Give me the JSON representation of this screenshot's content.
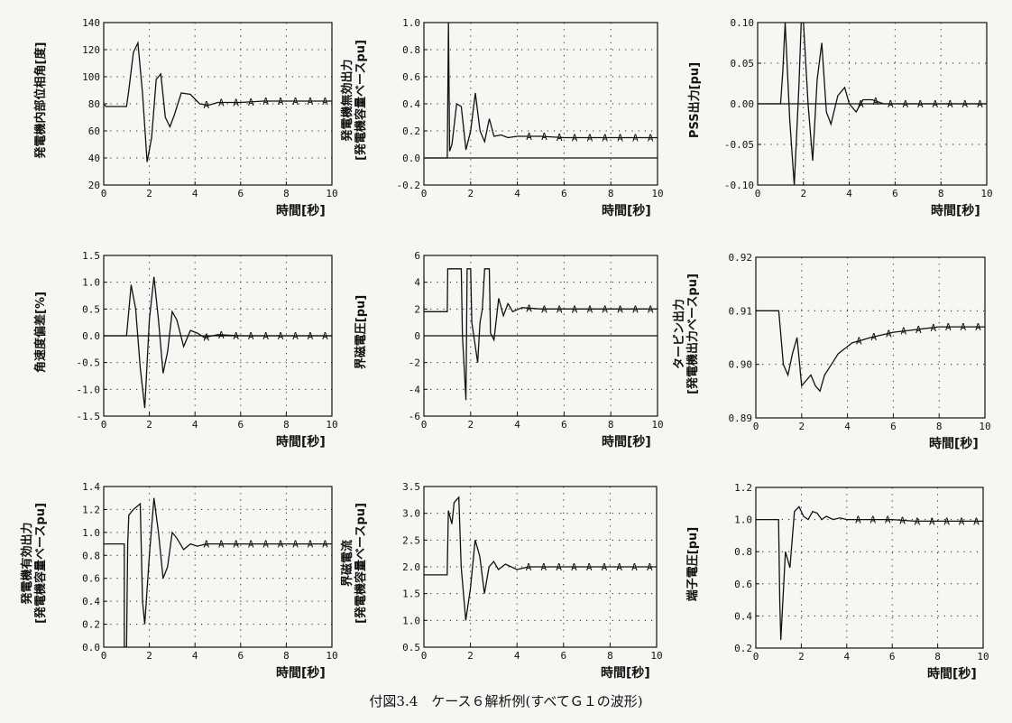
{
  "caption": "付図3.4　ケース６解析例(すべてＧ１の波形)",
  "chart_data": [
    {
      "type": "line",
      "ylabel": "発電機内部位相角[度]",
      "xlabel": "時間[秒]",
      "xlim": [
        0,
        10
      ],
      "ylim": [
        20,
        140
      ],
      "xticks": [
        0,
        2,
        4,
        6,
        8,
        10
      ],
      "yticks": [
        20,
        40,
        60,
        80,
        100,
        120,
        140
      ],
      "grid": true,
      "x": [
        0,
        0.1,
        1.0,
        1.1,
        1.3,
        1.5,
        1.7,
        1.9,
        2.1,
        2.3,
        2.5,
        2.7,
        2.9,
        3.1,
        3.4,
        3.8,
        4.2,
        4.6,
        5,
        6,
        7,
        8,
        9,
        10
      ],
      "y": [
        80,
        78,
        78,
        90,
        118,
        125,
        88,
        37,
        55,
        98,
        102,
        70,
        63,
        72,
        88,
        87,
        80,
        79,
        81,
        81,
        82,
        82,
        82,
        82
      ]
    },
    {
      "type": "line",
      "ylabel": "発電機無効出力\n[発電機容量ベースpu]",
      "xlabel": "時間[秒]",
      "xlim": [
        0,
        10
      ],
      "ylim": [
        -0.2,
        1.0
      ],
      "xticks": [
        0,
        2,
        4,
        6,
        8,
        10
      ],
      "yticks": [
        -0.2,
        0,
        0.2,
        0.4,
        0.6,
        0.8,
        1.0
      ],
      "grid": true,
      "x": [
        0,
        1.0,
        1.05,
        1.1,
        1.2,
        1.4,
        1.6,
        1.8,
        2.0,
        2.2,
        2.4,
        2.6,
        2.8,
        3.0,
        3.3,
        3.6,
        4,
        5,
        6,
        7,
        8,
        9,
        10
      ],
      "y": [
        0.0,
        0.0,
        1.0,
        0.05,
        0.1,
        0.4,
        0.38,
        0.06,
        0.2,
        0.48,
        0.2,
        0.12,
        0.29,
        0.16,
        0.17,
        0.15,
        0.16,
        0.16,
        0.15,
        0.15,
        0.15,
        0.15,
        0.15
      ]
    },
    {
      "type": "line",
      "ylabel": "PSS出力[pu]",
      "xlabel": "時間[秒]",
      "xlim": [
        0,
        10
      ],
      "ylim": [
        -0.1,
        0.1
      ],
      "xticks": [
        0,
        2,
        4,
        6,
        8,
        10
      ],
      "yticks": [
        -0.1,
        -0.05,
        0,
        0.05,
        0.1
      ],
      "grid": true,
      "x": [
        0,
        1.0,
        1.1,
        1.2,
        1.4,
        1.6,
        1.8,
        1.9,
        2.0,
        2.2,
        2.4,
        2.6,
        2.8,
        3.0,
        3.2,
        3.5,
        3.8,
        4.0,
        4.3,
        4.6,
        5,
        5.5,
        6,
        7,
        8,
        9,
        10
      ],
      "y": [
        0.0,
        0.0,
        0.04,
        0.1,
        -0.02,
        -0.1,
        0.02,
        0.1,
        0.1,
        0.0,
        -0.07,
        0.03,
        0.075,
        -0.01,
        -0.025,
        0.01,
        0.02,
        0.0,
        -0.01,
        0.005,
        0.005,
        0,
        0,
        0,
        0,
        0,
        0
      ]
    },
    {
      "type": "line",
      "ylabel": "角速度偏差[%]",
      "xlabel": "時間[秒]",
      "xlim": [
        0,
        10
      ],
      "ylim": [
        -1.5,
        1.5
      ],
      "xticks": [
        0,
        2,
        4,
        6,
        8,
        10
      ],
      "yticks": [
        -1.5,
        -1.0,
        -0.5,
        0,
        0.5,
        1.0,
        1.5
      ],
      "grid": true,
      "x": [
        0,
        1.0,
        1.2,
        1.4,
        1.6,
        1.8,
        2.0,
        2.2,
        2.4,
        2.6,
        2.8,
        3.0,
        3.2,
        3.5,
        3.8,
        4.1,
        4.4,
        5,
        6,
        7,
        8,
        9,
        10
      ],
      "y": [
        0,
        0,
        0.95,
        0.5,
        -0.6,
        -1.35,
        0.3,
        1.1,
        0.3,
        -0.7,
        -0.3,
        0.45,
        0.3,
        -0.2,
        0.1,
        0.05,
        -0.03,
        0.02,
        0,
        0,
        0,
        0,
        0
      ]
    },
    {
      "type": "line",
      "ylabel": "界磁電圧[pu]",
      "xlabel": "時間[秒]",
      "xlim": [
        0,
        10
      ],
      "ylim": [
        -6,
        6
      ],
      "xticks": [
        0,
        2,
        4,
        6,
        8,
        10
      ],
      "yticks": [
        -6,
        -4,
        -2,
        0,
        2,
        4,
        6
      ],
      "grid": true,
      "x": [
        0,
        1.0,
        1.02,
        1.6,
        1.65,
        1.8,
        1.85,
        2.0,
        2.05,
        2.3,
        2.4,
        2.5,
        2.6,
        2.8,
        2.85,
        3.0,
        3.2,
        3.4,
        3.6,
        3.8,
        4.2,
        5,
        6,
        7,
        8,
        9,
        10
      ],
      "y": [
        1.8,
        1.8,
        5,
        5,
        0,
        -4.8,
        5,
        5,
        1,
        -2,
        1,
        2,
        5,
        5,
        0.2,
        -0.3,
        2.8,
        1.5,
        2.4,
        1.8,
        2.1,
        2.0,
        2.0,
        2.0,
        2.0,
        2.0,
        2.0
      ]
    },
    {
      "type": "line",
      "ylabel": "タービン出力\n[発電機出力ベースpu]",
      "xlabel": "時間[秒]",
      "xlim": [
        0,
        10
      ],
      "ylim": [
        0.89,
        0.92
      ],
      "xticks": [
        0,
        2,
        4,
        6,
        8,
        10
      ],
      "yticks": [
        0.89,
        0.9,
        0.91,
        0.92
      ],
      "grid": true,
      "x": [
        0,
        1.0,
        1.2,
        1.4,
        1.6,
        1.8,
        2.0,
        2.2,
        2.4,
        2.6,
        2.8,
        3.0,
        3.3,
        3.6,
        3.9,
        4.2,
        4.6,
        5,
        6,
        7,
        8,
        9,
        10
      ],
      "y": [
        0.91,
        0.91,
        0.9,
        0.898,
        0.902,
        0.905,
        0.896,
        0.897,
        0.898,
        0.896,
        0.895,
        0.898,
        0.9,
        0.902,
        0.903,
        0.904,
        0.9045,
        0.905,
        0.906,
        0.9065,
        0.907,
        0.907,
        0.907
      ]
    },
    {
      "type": "line",
      "ylabel": "発電機有効出力\n[発電機容量ベースpu]",
      "xlabel": "時間[秒]",
      "xlim": [
        0,
        10
      ],
      "ylim": [
        0,
        1.4
      ],
      "xticks": [
        0,
        2,
        4,
        6,
        8,
        10
      ],
      "yticks": [
        0,
        0.2,
        0.4,
        0.6,
        0.8,
        1.0,
        1.2,
        1.4
      ],
      "grid": true,
      "x": [
        0,
        0.9,
        0.9,
        1.0,
        1.05,
        1.1,
        1.3,
        1.6,
        1.7,
        1.8,
        2.0,
        2.2,
        2.4,
        2.6,
        2.8,
        3.0,
        3.2,
        3.5,
        3.8,
        4.1,
        4.5,
        5,
        6,
        7,
        8,
        9,
        10
      ],
      "y": [
        0.9,
        0.9,
        0,
        0,
        0.9,
        1.15,
        1.2,
        1.25,
        0.4,
        0.2,
        0.8,
        1.3,
        1.0,
        0.6,
        0.7,
        1.0,
        0.95,
        0.85,
        0.9,
        0.88,
        0.9,
        0.9,
        0.9,
        0.9,
        0.9,
        0.9,
        0.9
      ]
    },
    {
      "type": "line",
      "ylabel": "界磁電流\n[発電機容量ベースpu]",
      "xlabel": "時間[秒]",
      "xlim": [
        0,
        10
      ],
      "ylim": [
        0.5,
        3.5
      ],
      "xticks": [
        0,
        2,
        4,
        6,
        8,
        10
      ],
      "yticks": [
        0.5,
        1.0,
        1.5,
        2.0,
        2.5,
        3.0,
        3.5
      ],
      "grid": true,
      "x": [
        0,
        1.0,
        1.05,
        1.2,
        1.3,
        1.5,
        1.6,
        1.8,
        2.0,
        2.2,
        2.4,
        2.6,
        2.8,
        3.0,
        3.2,
        3.5,
        4.0,
        4.5,
        5,
        6,
        7,
        8,
        9,
        10
      ],
      "y": [
        1.85,
        1.85,
        3.05,
        2.8,
        3.2,
        3.3,
        2.0,
        1.0,
        1.6,
        2.5,
        2.2,
        1.5,
        2.0,
        2.1,
        1.95,
        2.05,
        1.95,
        2.0,
        2.0,
        2.0,
        2.0,
        2.0,
        2.0,
        2.0
      ]
    },
    {
      "type": "line",
      "ylabel": "端子電圧[pu]",
      "xlabel": "時間[秒]",
      "xlim": [
        0,
        10
      ],
      "ylim": [
        0.2,
        1.2
      ],
      "xticks": [
        0,
        2,
        4,
        6,
        8,
        10
      ],
      "yticks": [
        0.2,
        0.4,
        0.6,
        0.8,
        1.0,
        1.2
      ],
      "grid": true,
      "x": [
        0,
        1.0,
        1.05,
        1.1,
        1.3,
        1.5,
        1.7,
        1.9,
        2.1,
        2.3,
        2.5,
        2.7,
        2.9,
        3.1,
        3.4,
        3.7,
        4,
        5,
        6,
        7,
        8,
        9,
        10
      ],
      "y": [
        1.0,
        1.0,
        0.5,
        0.25,
        0.8,
        0.7,
        1.05,
        1.08,
        1.02,
        1.0,
        1.05,
        1.04,
        1.0,
        1.02,
        1.0,
        1.01,
        1.0,
        1.0,
        1.0,
        0.99,
        0.99,
        0.99,
        0.99
      ]
    }
  ]
}
